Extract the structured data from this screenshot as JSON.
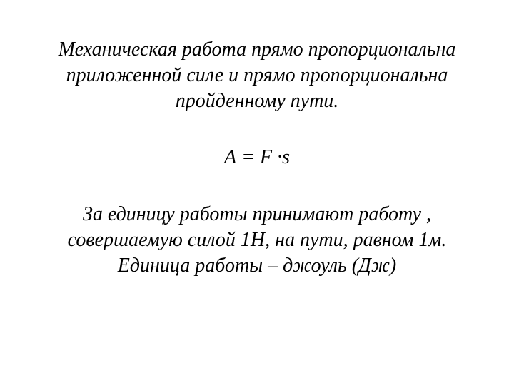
{
  "slide": {
    "background_color": "#ffffff",
    "text_color": "#000000",
    "font_family": "Times New Roman",
    "font_style": "italic",
    "font_size_pt": 28,
    "para1_line1": "Механическая  работа  прямо пропорциональна",
    "para1_line2": "приложенной силе и прямо пропорциональна",
    "para1_line3": "пройденному пути.",
    "formula": "А = F ·s",
    "para2_line1": "За единицу работы  принимают работу ,",
    "para2_line2": "совершаемую силой 1Н, на пути, равном 1м.",
    "para2_line3": "Единица работы – джоуль (Дж)"
  }
}
